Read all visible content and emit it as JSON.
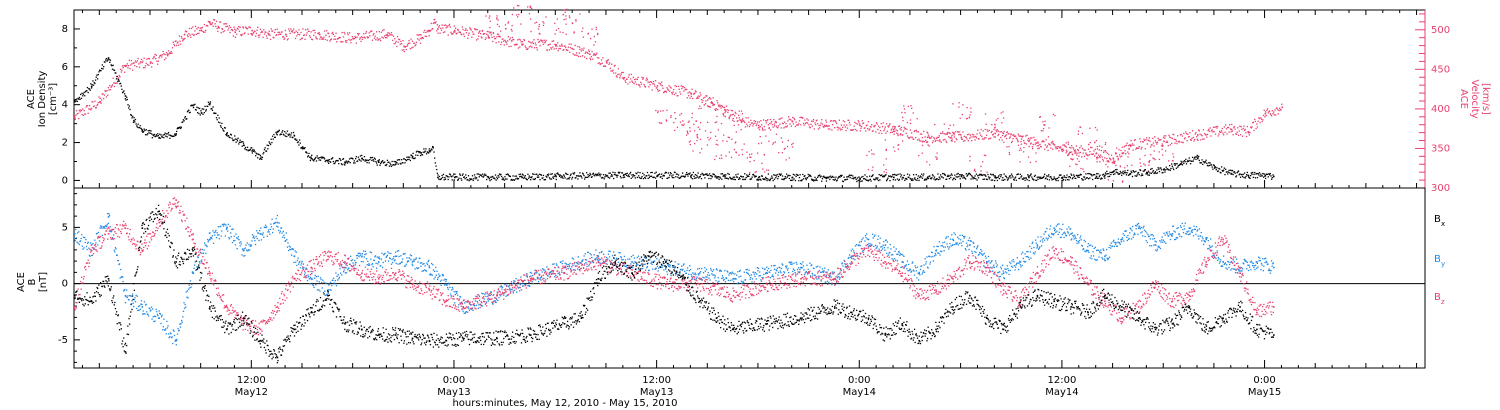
{
  "figure": {
    "x_axis_title": "hours:minutes, May 12, 2010 - May 15, 2010",
    "x_ticks": [
      {
        "time": "12:00",
        "date": "May12",
        "hours": 12
      },
      {
        "time": "0:00",
        "date": "May13",
        "hours": 24
      },
      {
        "time": "12:00",
        "date": "May13",
        "hours": 36
      },
      {
        "time": "0:00",
        "date": "May14",
        "hours": 48
      },
      {
        "time": "12:00",
        "date": "May14",
        "hours": 60
      },
      {
        "time": "0:00",
        "date": "May15",
        "hours": 72
      }
    ],
    "x_range_hours": [
      1.5,
      81.5
    ]
  },
  "colors": {
    "black": "#000000",
    "pink": "#e8416e",
    "blue": "#1e88e5"
  },
  "chart_data": [
    {
      "type": "scatter",
      "panel": "plasma",
      "ylabel_left": [
        "ACE",
        "Ion Density",
        "[cm⁻³]"
      ],
      "ylabel_right": [
        "ACE",
        "Velocity",
        "[km/s]"
      ],
      "ylim_left": [
        -0.4,
        9.0
      ],
      "yticks_left": [
        "0",
        "2",
        "4",
        "6",
        "8"
      ],
      "ylim_right": [
        300,
        525
      ],
      "yticks_right": [
        "300",
        "350",
        "400",
        "450",
        "500"
      ],
      "series": [
        {
          "name": "",
          "axis": "left",
          "color": "#000000",
          "x": [
            1.5,
            2.5,
            3.5,
            4.5,
            5.0,
            5.5,
            6.5,
            7.5,
            8.5,
            9.0,
            9.5,
            10.5,
            11.5,
            12.0,
            12.5,
            13.5,
            14.5,
            15.0,
            15.5,
            16.5,
            17.5,
            18.5,
            19.5,
            20.5,
            21.5,
            22.0,
            22.5,
            22.7,
            23.0,
            24.0,
            26.0,
            28.0,
            30.0,
            34.0,
            36.0,
            38.0,
            40.0,
            42.0,
            44.0,
            46.0,
            48.0,
            50.0,
            52.0,
            54.0,
            56.0,
            58.0,
            60.0,
            62.0,
            62.5,
            63.0,
            64.0,
            65.0,
            66.0,
            67.0,
            68.0,
            69.0,
            70.0,
            71.0,
            72.0,
            72.5
          ],
          "y": [
            4.2,
            5.0,
            6.5,
            4.5,
            3.2,
            2.7,
            2.3,
            2.5,
            4.0,
            3.6,
            4.1,
            2.5,
            1.9,
            1.6,
            1.2,
            2.6,
            2.4,
            1.8,
            1.2,
            1.1,
            1.0,
            1.2,
            1.0,
            0.9,
            1.3,
            1.5,
            1.6,
            1.8,
            0.2,
            0.2,
            0.2,
            0.2,
            0.25,
            0.3,
            0.3,
            0.3,
            0.25,
            0.2,
            0.2,
            0.15,
            0.15,
            0.2,
            0.2,
            0.25,
            0.2,
            0.2,
            0.2,
            0.25,
            0.3,
            0.5,
            0.4,
            0.45,
            0.6,
            0.9,
            1.2,
            0.7,
            0.4,
            0.3,
            0.3,
            0.25
          ]
        },
        {
          "name": "",
          "axis": "right",
          "color": "#e8416e",
          "x": [
            1.5,
            3.0,
            4.5,
            6.0,
            7.0,
            8.0,
            9.0,
            9.5,
            10.0,
            11.0,
            12.0,
            13.0,
            14.0,
            16.0,
            18.0,
            20.0,
            21.0,
            22.0,
            22.5,
            22.8,
            23.0,
            24.0,
            26.0,
            28.0,
            30.0,
            32.0,
            33.0,
            34.0,
            36.0,
            38.0,
            40.0,
            41.0,
            42.0,
            44.0,
            46.0,
            48.0,
            50.0,
            52.0,
            54.0,
            56.0,
            58.0,
            60.0,
            62.0,
            63.0,
            64.0,
            66.0,
            68.0,
            70.0,
            71.0,
            72.0,
            73.0
          ],
          "y": [
            390,
            410,
            455,
            460,
            470,
            495,
            500,
            510,
            505,
            498,
            500,
            495,
            495,
            495,
            490,
            495,
            480,
            490,
            500,
            510,
            502,
            500,
            492,
            482,
            482,
            470,
            460,
            440,
            430,
            420,
            400,
            385,
            380,
            385,
            380,
            380,
            375,
            365,
            365,
            370,
            360,
            350,
            345,
            338,
            355,
            360,
            368,
            375,
            372,
            395,
            403
          ]
        },
        {
          "name": "",
          "axis": "right",
          "color": "#e8416e",
          "role": "scatter-cloud",
          "x": [
            26.0,
            27.0,
            28.0,
            29.0,
            30.5,
            31.0,
            32.0,
            36.5,
            37.5,
            38.0,
            38.5,
            39.0,
            39.5,
            40.0,
            40.5,
            41.0,
            42.0,
            42.5,
            43.5,
            49.0,
            50.0,
            51.0,
            52.0,
            53.0,
            54.0,
            55.0,
            56.0,
            57.0,
            58.0,
            59.0,
            60.0,
            61.0,
            61.5,
            62.0,
            63.0,
            63.5,
            65.0,
            66.0
          ],
          "y": [
            505,
            500,
            520,
            510,
            505,
            515,
            490,
            395,
            385,
            375,
            360,
            400,
            370,
            350,
            385,
            345,
            335,
            370,
            350,
            335,
            360,
            390,
            345,
            370,
            400,
            330,
            385,
            355,
            345,
            380,
            350,
            335,
            365,
            345,
            320,
            340,
            330,
            350
          ]
        }
      ]
    },
    {
      "type": "scatter",
      "panel": "magnetic-field",
      "ylabel_left": [
        "ACE",
        "B",
        "[nT]"
      ],
      "ylim": [
        -7.5,
        8.5
      ],
      "yticks": [
        "-5",
        "0",
        "5"
      ],
      "zero_line": true,
      "legend": [
        {
          "label": "B",
          "sub": "x",
          "color": "#000000"
        },
        {
          "label": "B",
          "sub": "y",
          "color": "#1e88e5"
        },
        {
          "label": "B",
          "sub": "z",
          "color": "#e8416e"
        }
      ],
      "series": [
        {
          "name": "Bx",
          "color": "#000000",
          "x": [
            1.5,
            2.5,
            3.5,
            4.5,
            5.5,
            6.5,
            7.5,
            8.5,
            9.5,
            10.5,
            11.5,
            12.5,
            13.5,
            14.5,
            15.5,
            16.5,
            17.5,
            18.5,
            19.5,
            20.5,
            21.5,
            22.5,
            23.5,
            24.5,
            26.5,
            28.5,
            30.5,
            31.5,
            32.5,
            33.5,
            34.5,
            35.5,
            36.5,
            37.5,
            38.5,
            39.5,
            40.5,
            42.5,
            44.5,
            46.5,
            47.5,
            48.5,
            49.5,
            50.5,
            51.5,
            52.5,
            53.5,
            54.5,
            55.5,
            56.5,
            57.5,
            58.5,
            59.5,
            60.5,
            61.5,
            62.5,
            63.5,
            64.5,
            65.5,
            66.5,
            67.5,
            68.5,
            69.5,
            70.5,
            71.5,
            72.5
          ],
          "y": [
            -1.0,
            -1.5,
            0.5,
            -6.0,
            5.0,
            6.5,
            2.0,
            3.0,
            -2.0,
            -4.0,
            -3.0,
            -5.0,
            -6.5,
            -4.0,
            -2.5,
            -1.0,
            -3.5,
            -4.0,
            -4.5,
            -4.5,
            -4.8,
            -5.0,
            -5.0,
            -4.8,
            -4.8,
            -4.5,
            -3.5,
            -3.0,
            0.5,
            2.0,
            1.0,
            2.5,
            2.0,
            0.5,
            -1.5,
            -3.0,
            -4.0,
            -3.5,
            -3.0,
            -2.0,
            -2.5,
            -3.0,
            -4.5,
            -3.5,
            -5.0,
            -4.0,
            -2.0,
            -1.0,
            -3.0,
            -4.0,
            -2.0,
            -1.0,
            -1.5,
            -2.0,
            -2.5,
            -1.0,
            -2.0,
            -3.0,
            -4.0,
            -3.5,
            -2.0,
            -4.0,
            -3.0,
            -2.0,
            -4.0,
            -4.5
          ]
        },
        {
          "name": "By",
          "color": "#1e88e5",
          "x": [
            1.5,
            2.5,
            3.5,
            4.5,
            5.5,
            6.5,
            7.5,
            8.5,
            9.5,
            10.5,
            11.5,
            12.5,
            13.5,
            14.5,
            15.5,
            16.5,
            17.5,
            18.5,
            19.5,
            20.5,
            21.5,
            22.5,
            23.5,
            24.5,
            26.5,
            28.5,
            30.5,
            32.5,
            34.5,
            36.5,
            38.5,
            40.5,
            42.5,
            44.5,
            46.5,
            47.5,
            48.5,
            49.5,
            50.5,
            51.5,
            52.5,
            53.5,
            54.5,
            55.5,
            56.5,
            57.5,
            58.5,
            59.5,
            60.5,
            61.5,
            62.5,
            63.5,
            64.5,
            65.5,
            66.5,
            67.5,
            68.5,
            69.5,
            70.5,
            71.5,
            72.5
          ],
          "y": [
            4.5,
            3.0,
            6.0,
            -1.0,
            -2.0,
            -3.0,
            -5.0,
            1.0,
            4.0,
            5.0,
            3.0,
            4.5,
            5.5,
            2.5,
            0.5,
            -0.5,
            1.5,
            2.5,
            2.0,
            2.5,
            2.0,
            1.5,
            0.0,
            -2.0,
            -1.0,
            0.5,
            1.5,
            2.5,
            2.0,
            1.5,
            1.0,
            0.5,
            1.0,
            1.5,
            0.5,
            2.5,
            4.0,
            3.5,
            2.0,
            1.0,
            3.0,
            4.0,
            3.5,
            2.0,
            1.0,
            2.0,
            3.5,
            5.0,
            4.5,
            3.0,
            2.5,
            4.0,
            5.0,
            3.5,
            4.5,
            5.0,
            4.0,
            2.0,
            1.5,
            2.0,
            1.5
          ]
        },
        {
          "name": "Bz",
          "color": "#e8416e",
          "x": [
            1.5,
            2.5,
            3.5,
            4.5,
            5.5,
            6.5,
            7.5,
            8.5,
            9.5,
            10.5,
            11.5,
            12.5,
            13.5,
            14.5,
            15.5,
            16.5,
            17.5,
            18.5,
            19.5,
            20.5,
            21.5,
            22.5,
            23.5,
            24.5,
            26.5,
            28.5,
            30.5,
            32.5,
            34.5,
            36.5,
            38.5,
            40.5,
            42.5,
            44.5,
            46.5,
            47.5,
            48.5,
            49.5,
            50.5,
            51.5,
            52.5,
            53.5,
            54.5,
            55.5,
            56.5,
            57.5,
            58.5,
            59.5,
            60.5,
            61.5,
            62.5,
            63.5,
            64.5,
            65.5,
            66.5,
            67.5,
            68.5,
            69.5,
            70.5,
            71.5,
            72.5
          ],
          "y": [
            -2.0,
            3.0,
            4.5,
            5.0,
            3.0,
            5.5,
            7.5,
            4.0,
            1.0,
            -2.0,
            -3.5,
            -4.0,
            -2.0,
            0.5,
            1.5,
            2.5,
            2.0,
            1.0,
            0.5,
            1.0,
            0.0,
            -0.5,
            -1.5,
            -2.0,
            -1.0,
            0.5,
            1.0,
            2.0,
            1.0,
            0.0,
            0.0,
            -1.0,
            0.0,
            0.5,
            0.5,
            2.0,
            3.0,
            2.0,
            1.0,
            -1.0,
            -0.5,
            0.5,
            2.0,
            1.5,
            -0.5,
            -1.5,
            1.0,
            3.0,
            2.0,
            0.0,
            -1.5,
            -3.0,
            -2.0,
            0.0,
            -1.5,
            -1.0,
            2.0,
            4.0,
            1.0,
            -2.5,
            -2.0
          ]
        }
      ]
    }
  ]
}
